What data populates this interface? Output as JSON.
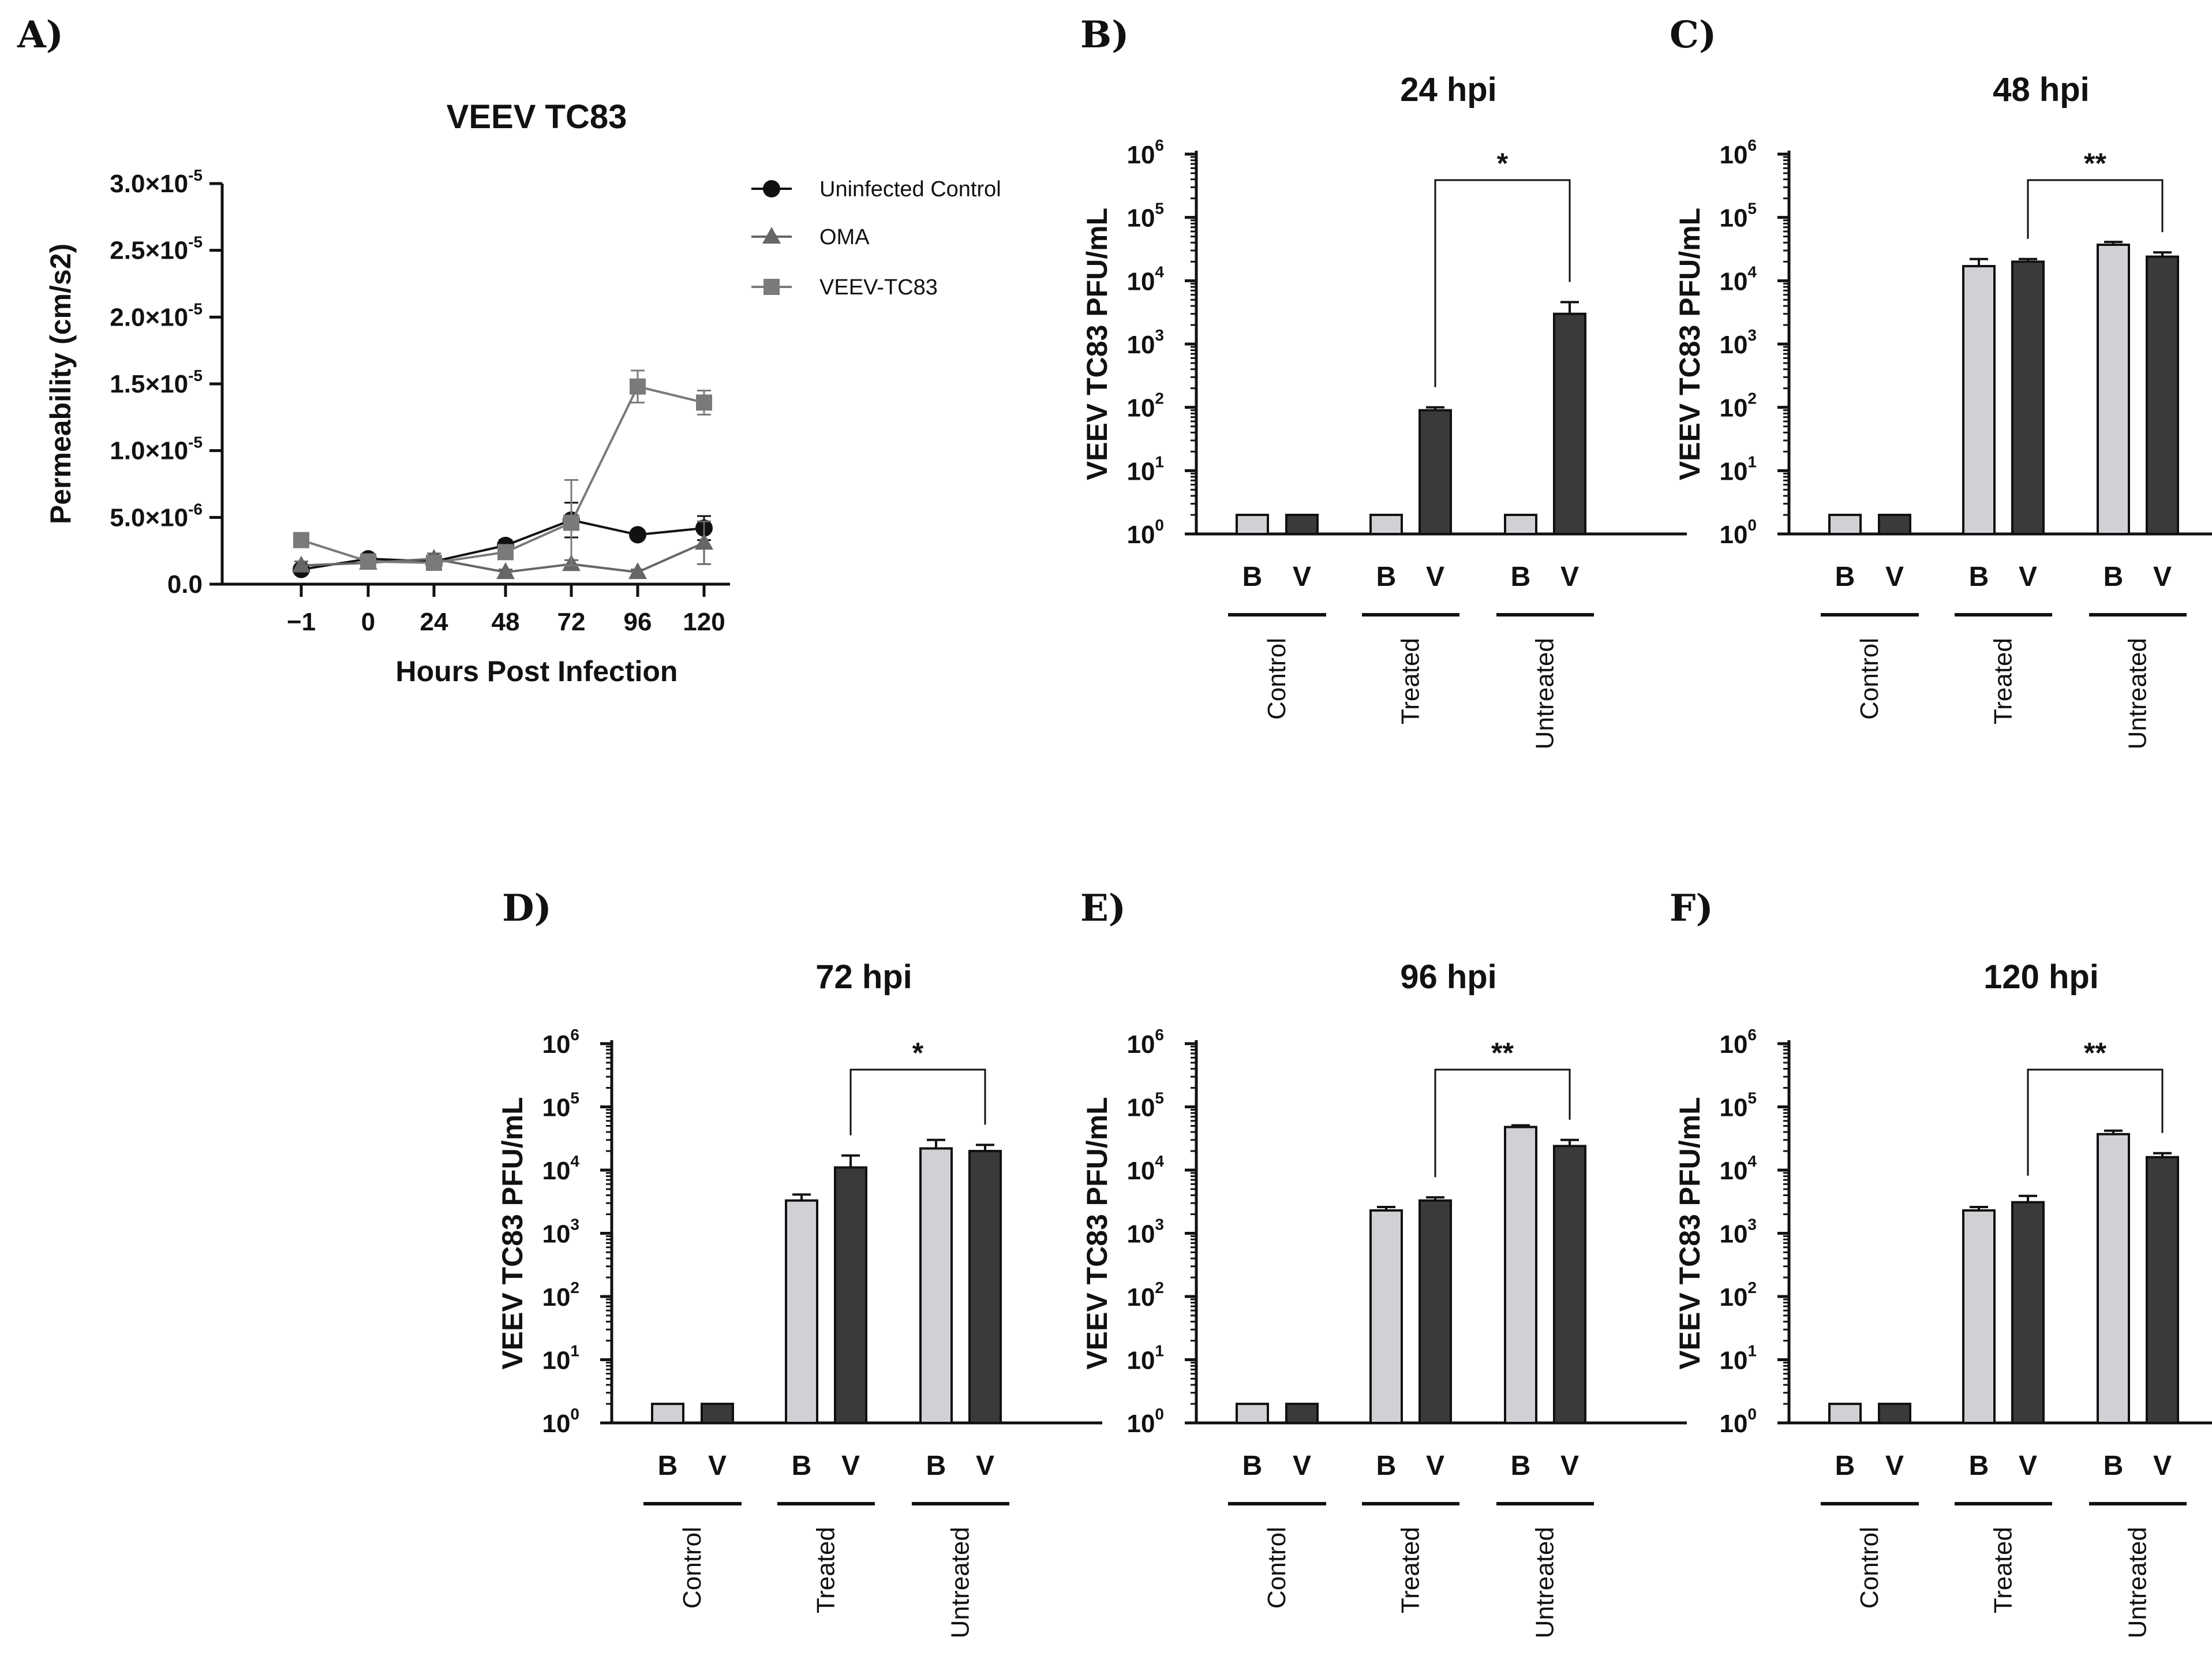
{
  "colors": {
    "axis": "#111111",
    "uninfected": "#111111",
    "oma": "#666666",
    "veev": "#7a7a7a",
    "bar_b": "#cfd1d4",
    "bar_v": "#3a3a3a"
  },
  "chart_data": [
    {
      "panel": "A)",
      "type": "line",
      "title": "VEEV TC83",
      "xlabel": "Hours Post Infection",
      "ylabel": "Permeability (cm/s2)",
      "x_ticks": [
        "−1",
        "0",
        "24",
        "48",
        "72",
        "96",
        "120"
      ],
      "y_ticks": [
        {
          "value": 0,
          "mant": "0.0",
          "exp": ""
        },
        {
          "value": 5e-06,
          "mant": "5.0×10",
          "exp": "-6"
        },
        {
          "value": 1e-05,
          "mant": "1.0×10",
          "exp": "-5"
        },
        {
          "value": 1.5e-05,
          "mant": "1.5×10",
          "exp": "-5"
        },
        {
          "value": 2e-05,
          "mant": "2.0×10",
          "exp": "-5"
        },
        {
          "value": 2.5e-05,
          "mant": "2.5×10",
          "exp": "-5"
        },
        {
          "value": 3e-05,
          "mant": "3.0×10",
          "exp": "-5"
        }
      ],
      "ylim": [
        0,
        3e-05
      ],
      "series": [
        {
          "name": "Uninfected Control",
          "marker": "circle",
          "values": [
            1.1e-06,
            1.9e-06,
            1.7e-06,
            2.9e-06,
            4.8e-06,
            3.7e-06,
            4.2e-06
          ],
          "errors": [
            3e-07,
            3e-07,
            3e-07,
            4e-07,
            1.3e-06,
            3e-07,
            9e-07
          ]
        },
        {
          "name": "OMA",
          "marker": "triangle",
          "values": [
            1.4e-06,
            1.6e-06,
            1.9e-06,
            9e-07,
            1.5e-06,
            9e-07,
            3.1e-06
          ],
          "errors": [
            3e-07,
            3e-07,
            4e-07,
            2e-07,
            3e-07,
            2e-07,
            1.6e-06
          ]
        },
        {
          "name": "VEEV-TC83",
          "marker": "square",
          "values": [
            3.3e-06,
            1.7e-06,
            1.6e-06,
            2.4e-06,
            4.6e-06,
            1.48e-05,
            1.36e-05
          ],
          "errors": [
            3e-07,
            3e-07,
            4e-07,
            4e-07,
            3.2e-06,
            1.2e-06,
            9e-07
          ]
        }
      ]
    },
    {
      "panel": "B)",
      "type": "bar",
      "title": "24 hpi",
      "ylabel": "VEEV TC83 PFU/mL",
      "yscale": "log",
      "ylim": [
        1,
        1000000
      ],
      "categories": [
        "B",
        "V",
        "B",
        "V",
        "B",
        "V"
      ],
      "groups": [
        "Control",
        "Treated",
        "Untreated"
      ],
      "values": [
        2,
        2,
        2,
        90,
        2,
        3000
      ],
      "errors": [
        0,
        0,
        0,
        10,
        0,
        1600
      ],
      "significance": {
        "label": "*",
        "from": 3,
        "to": 5
      }
    },
    {
      "panel": "C)",
      "type": "bar",
      "title": "48 hpi",
      "ylabel": "VEEV TC83 PFU/mL",
      "yscale": "log",
      "ylim": [
        1,
        1000000
      ],
      "categories": [
        "B",
        "V",
        "B",
        "V",
        "B",
        "V"
      ],
      "groups": [
        "Control",
        "Treated",
        "Untreated"
      ],
      "values": [
        2,
        2,
        17000,
        20000,
        37000,
        24000
      ],
      "errors": [
        0,
        0,
        5000,
        2000,
        4000,
        4000
      ],
      "significance": {
        "label": "**",
        "from": 3,
        "to": 5
      }
    },
    {
      "panel": "D)",
      "type": "bar",
      "title": "72 hpi",
      "ylabel": "VEEV TC83 PFU/mL",
      "yscale": "log",
      "ylim": [
        1,
        1000000
      ],
      "categories": [
        "B",
        "V",
        "B",
        "V",
        "B",
        "V"
      ],
      "groups": [
        "Control",
        "Treated",
        "Untreated"
      ],
      "values": [
        2,
        2,
        3300,
        11000,
        22000,
        20000
      ],
      "errors": [
        0,
        0,
        800,
        6000,
        8000,
        5000
      ],
      "significance": {
        "label": "*",
        "from": 3,
        "to": 5
      }
    },
    {
      "panel": "E)",
      "type": "bar",
      "title": "96 hpi",
      "ylabel": "VEEV TC83 PFU/mL",
      "yscale": "log",
      "ylim": [
        1,
        1000000
      ],
      "categories": [
        "B",
        "V",
        "B",
        "V",
        "B",
        "V"
      ],
      "groups": [
        "Control",
        "Treated",
        "Untreated"
      ],
      "values": [
        2,
        2,
        2300,
        3300,
        48000,
        24000
      ],
      "errors": [
        0,
        0,
        300,
        400,
        3000,
        6000
      ],
      "significance": {
        "label": "**",
        "from": 3,
        "to": 5
      }
    },
    {
      "panel": "F)",
      "type": "bar",
      "title": "120 hpi",
      "ylabel": "VEEV TC83 PFU/mL",
      "yscale": "log",
      "ylim": [
        1,
        1000000
      ],
      "categories": [
        "B",
        "V",
        "B",
        "V",
        "B",
        "V"
      ],
      "groups": [
        "Control",
        "Treated",
        "Untreated"
      ],
      "values": [
        2,
        2,
        2300,
        3100,
        37000,
        16000
      ],
      "errors": [
        0,
        0,
        300,
        800,
        5000,
        2500
      ],
      "significance": {
        "label": "**",
        "from": 3,
        "to": 5
      }
    }
  ]
}
